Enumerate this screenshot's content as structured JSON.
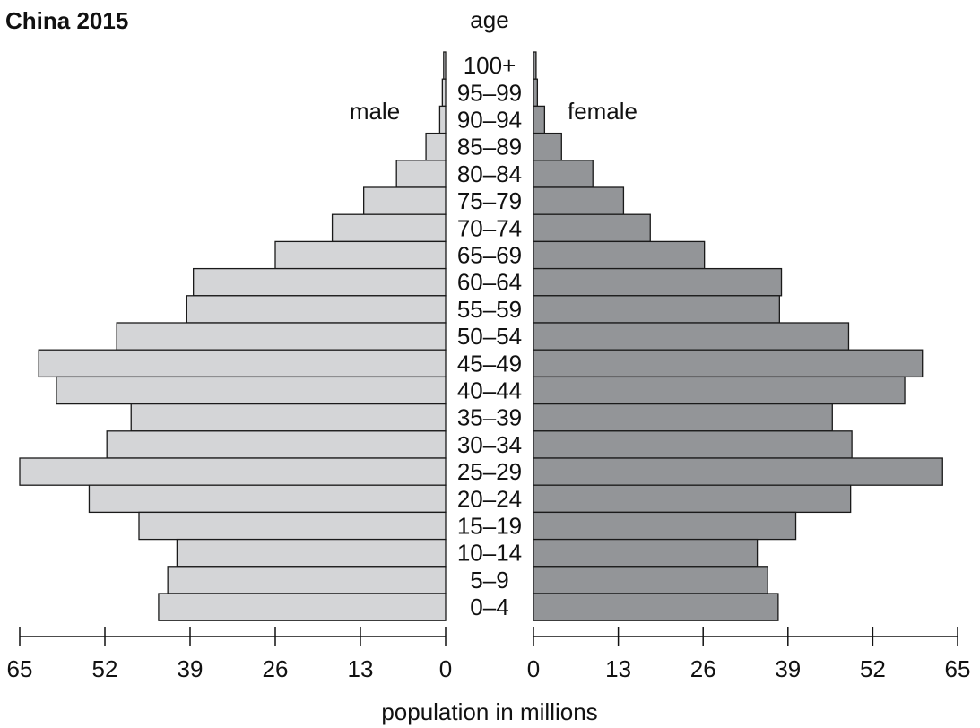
{
  "chart_data": {
    "type": "bar",
    "orientation": "horizontal-pyramid",
    "title": "China 2015",
    "center_label": "age",
    "xlabel": "population in millions",
    "xlim": [
      0,
      65
    ],
    "xticks": [
      0,
      13,
      26,
      39,
      52,
      65
    ],
    "categories": [
      "100+",
      "95–99",
      "90–94",
      "85–89",
      "80–84",
      "75–79",
      "70–74",
      "65–69",
      "60–64",
      "55–59",
      "50–54",
      "45–49",
      "40–44",
      "35–39",
      "30–34",
      "25–29",
      "20–24",
      "15–19",
      "10–14",
      "5–9",
      "0–4"
    ],
    "series": [
      {
        "name": "male",
        "color": "#d4d5d7",
        "values": [
          0.3,
          0.5,
          0.9,
          3.0,
          7.5,
          12.5,
          17.3,
          26.0,
          38.5,
          39.5,
          50.2,
          62.1,
          59.4,
          48.0,
          51.7,
          65.0,
          54.4,
          46.8,
          41.0,
          42.4,
          43.8
        ]
      },
      {
        "name": "female",
        "color": "#939598",
        "values": [
          0.4,
          0.6,
          1.7,
          4.3,
          9.1,
          13.8,
          17.9,
          26.2,
          38.0,
          37.7,
          48.3,
          59.6,
          56.9,
          45.8,
          48.8,
          62.7,
          48.6,
          40.2,
          34.3,
          35.9,
          37.5
        ]
      }
    ]
  }
}
